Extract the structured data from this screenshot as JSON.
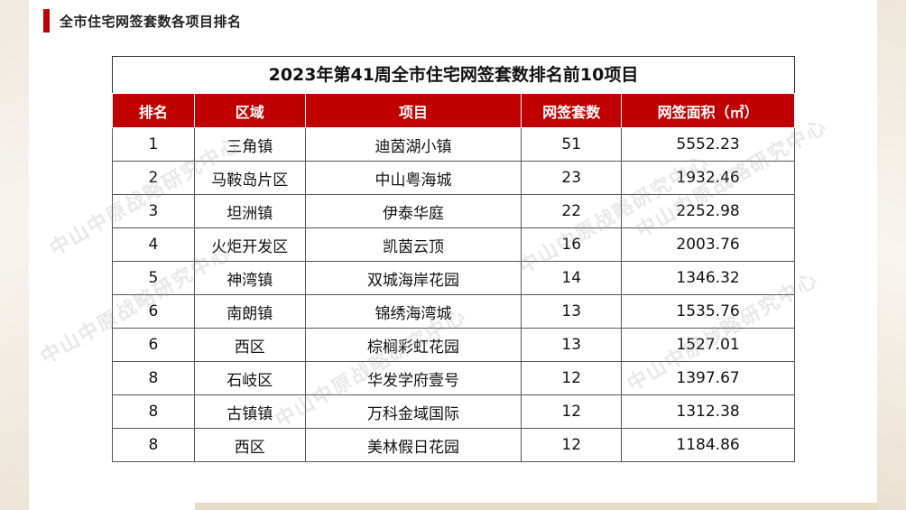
{
  "page_title": "全市住宅网签套数各项目排名",
  "table": {
    "caption": "2023年第41周全市住宅网签套数排名前10项目",
    "headers": [
      "排名",
      "区域",
      "项目",
      "网签套数",
      "网签面积（㎡）"
    ],
    "rows": [
      [
        "1",
        "三角镇",
        "迪茵湖小镇",
        "51",
        "5552.23"
      ],
      [
        "2",
        "马鞍岛片区",
        "中山粤海城",
        "23",
        "1932.46"
      ],
      [
        "3",
        "坦洲镇",
        "伊泰华庭",
        "22",
        "2252.98"
      ],
      [
        "4",
        "火炬开发区",
        "凯茵云顶",
        "16",
        "2003.76"
      ],
      [
        "5",
        "神湾镇",
        "双城海岸花园",
        "14",
        "1346.32"
      ],
      [
        "6",
        "南朗镇",
        "锦绣海湾城",
        "13",
        "1535.76"
      ],
      [
        "6",
        "西区",
        "棕榈彩虹花园",
        "13",
        "1527.01"
      ],
      [
        "8",
        "石岐区",
        "华发学府壹号",
        "12",
        "1397.67"
      ],
      [
        "8",
        "古镇镇",
        "万科金域国际",
        "12",
        "1312.38"
      ],
      [
        "8",
        "西区",
        "美林假日花园",
        "12",
        "1184.86"
      ]
    ]
  },
  "watermark": "中山中原战略研究中心",
  "colors": {
    "accent": "#c00000",
    "header_text": "#ffffff"
  }
}
